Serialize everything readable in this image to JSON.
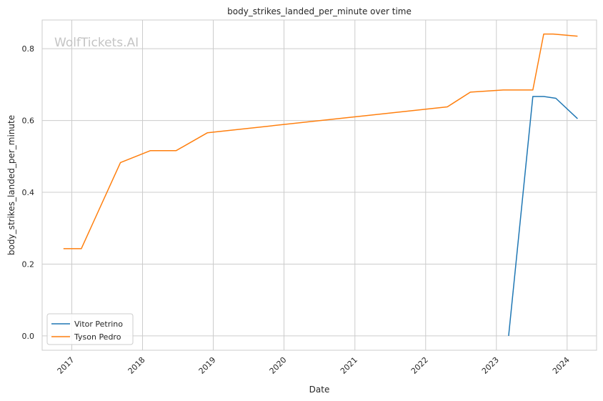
{
  "chart_data": {
    "type": "line",
    "title": "body_strikes_landed_per_minute over time",
    "xlabel": "Date",
    "ylabel": "body_strikes_landed_per_minute",
    "watermark": "WolfTickets.AI",
    "xlim": [
      "2016-08-01",
      "2024-06-01"
    ],
    "ylim": [
      -0.04,
      0.88
    ],
    "x_ticks": [
      "2017",
      "2018",
      "2019",
      "2020",
      "2021",
      "2022",
      "2023",
      "2024"
    ],
    "y_ticks": [
      "0.0",
      "0.2",
      "0.4",
      "0.6",
      "0.8"
    ],
    "grid": true,
    "legend_position": "lower-left",
    "series": [
      {
        "name": "Vitor Petrino",
        "color": "#1f77b4",
        "points": [
          {
            "x": "2023-03-05",
            "y": 0.0
          },
          {
            "x": "2023-07-08",
            "y": 0.667
          },
          {
            "x": "2023-09-02",
            "y": 0.667
          },
          {
            "x": "2023-11-04",
            "y": 0.662
          },
          {
            "x": "2024-02-24",
            "y": 0.605
          }
        ]
      },
      {
        "name": "Tyson Pedro",
        "color": "#ff7f0e",
        "points": [
          {
            "x": "2016-11-19",
            "y": 0.243
          },
          {
            "x": "2017-02-19",
            "y": 0.243
          },
          {
            "x": "2017-09-09",
            "y": 0.483
          },
          {
            "x": "2018-02-10",
            "y": 0.516
          },
          {
            "x": "2018-06-23",
            "y": 0.516
          },
          {
            "x": "2018-12-02",
            "y": 0.566
          },
          {
            "x": "2022-04-23",
            "y": 0.638
          },
          {
            "x": "2022-08-20",
            "y": 0.679
          },
          {
            "x": "2023-02-05",
            "y": 0.685
          },
          {
            "x": "2023-07-08",
            "y": 0.685
          },
          {
            "x": "2023-09-02",
            "y": 0.841
          },
          {
            "x": "2023-10-21",
            "y": 0.841
          },
          {
            "x": "2024-02-24",
            "y": 0.835
          }
        ]
      }
    ]
  }
}
